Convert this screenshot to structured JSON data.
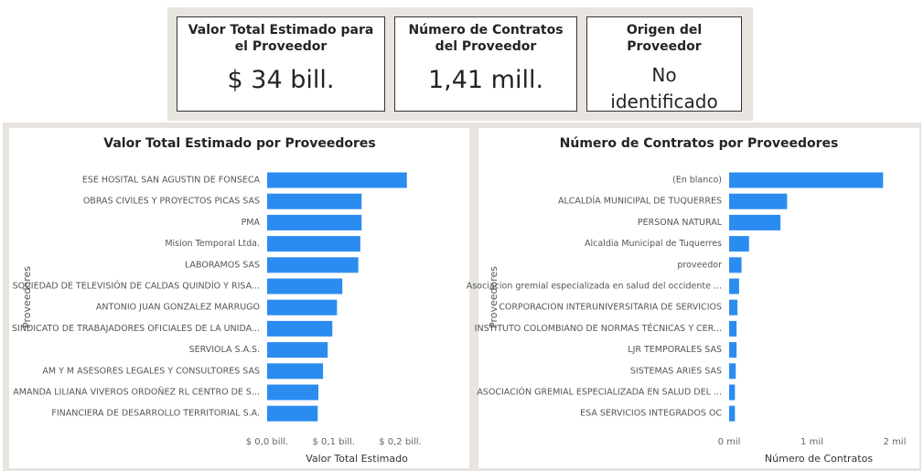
{
  "cards": [
    {
      "title": "Valor Total Estimado para el Proveedor",
      "value": "$ 34 bill."
    },
    {
      "title": "Número de Contratos del Proveedor",
      "value": "1,41 mill."
    },
    {
      "title": "Origen del Proveedor",
      "value": "No identificado"
    }
  ],
  "chart_data": [
    {
      "type": "hbar",
      "title": "Valor Total Estimado por Proveedores",
      "x_label": "Valor Total Estimado",
      "y_label": "Proveedores",
      "categories": [
        "ESE HOSITAL SAN AGUSTIN DE FONSECA",
        "OBRAS CIVILES Y PROYECTOS PICAS SAS",
        "PMA",
        "Mision Temporal Ltda.",
        "LABORAMOS SAS",
        "SOCIEDAD DE TELEVISIÓN DE CALDAS QUINDÍO Y RISA...",
        "ANTONIO JUAN GONZALEZ MARRUGO",
        "SINDICATO DE TRABAJADORES OFICIALES DE LA UNIDA...",
        "SERVIOLA S.A.S.",
        "AM Y M ASESORES LEGALES Y CONSULTORES SAS",
        "AMANDA LILIANA VIVEROS ORDOÑEZ RL CENTRO DE S...",
        "FINANCIERA DE DESARROLLO TERRITORIAL S.A."
      ],
      "values": [
        0.21,
        0.142,
        0.142,
        0.14,
        0.137,
        0.113,
        0.105,
        0.098,
        0.091,
        0.084,
        0.077,
        0.076
      ],
      "color": "#2b8cf0",
      "xlim": [
        0,
        0.22
      ],
      "xticks": [
        {
          "value": 0,
          "label": "$ 0,0 bill."
        },
        {
          "value": 0.1,
          "label": "$ 0,1 bill."
        },
        {
          "value": 0.2,
          "label": "$ 0,2 bill."
        }
      ]
    },
    {
      "type": "hbar",
      "title": "Número de Contratos por Proveedores",
      "x_label": "Número de Contratos",
      "y_label": "Proveedores",
      "categories": [
        "(En blanco)",
        "ALCALDÍA MUNICIPAL DE TUQUERRES",
        "PERSONA NATURAL",
        "Alcaldia Municipal de Tuquerres",
        "proveedor",
        "Asociacion gremial especializada en salud del occidente ...",
        "CORPORACION INTERUNIVERSITARIA DE SERVICIOS",
        "INSTITUTO COLOMBIANO DE NORMAS TÉCNICAS Y CER...",
        "LJR TEMPORALES SAS",
        "SISTEMAS ARIES SAS",
        "ASOCIACIÓN GREMIAL ESPECIALIZADA EN SALUD DEL ...",
        "ESA SERVICIOS INTEGRADOS OC"
      ],
      "values": [
        1.86,
        0.7,
        0.62,
        0.24,
        0.15,
        0.12,
        0.1,
        0.09,
        0.09,
        0.08,
        0.07,
        0.07
      ],
      "color": "#2b8cf0",
      "xlim": [
        0,
        2.1
      ],
      "xticks": [
        {
          "value": 0,
          "label": "0 mil"
        },
        {
          "value": 1,
          "label": "1 mil"
        },
        {
          "value": 2,
          "label": "2 mil"
        }
      ]
    }
  ]
}
